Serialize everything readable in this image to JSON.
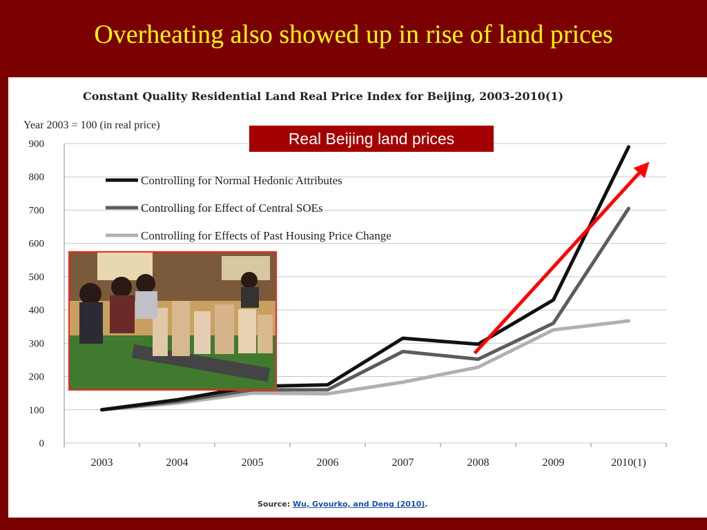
{
  "slide": {
    "title": "Overheating also showed up in rise of land prices",
    "callout": "Real Beijing land prices"
  },
  "source": {
    "label": "Source:",
    "link_text": "Wu, Gyourko, and Deng (2010)",
    "suffix": "."
  },
  "colors": {
    "background": "#7a0000",
    "title": "#ffff00",
    "callout": "#a40000",
    "arrow": "#ff0000",
    "photo_border": "#ff2020"
  },
  "photo": {
    "description_icon": "photo-housing-model-icon"
  },
  "chart_data": {
    "type": "line",
    "title": "Constant Quality Residential Land Real Price Index for Beijing, 2003-2010(1)",
    "ylabel": "Year 2003 = 100 (in real price)",
    "xlabel": "",
    "categories": [
      "2003",
      "2004",
      "2005",
      "2006",
      "2007",
      "2008",
      "2009",
      "2010(1)"
    ],
    "ylim": [
      0,
      900
    ],
    "yticks": [
      "0",
      "100",
      "200",
      "300",
      "400",
      "500",
      "600",
      "700",
      "800",
      "900"
    ],
    "grid": true,
    "legend_placement": "top-left",
    "series": [
      {
        "name": "Controlling for Normal Hedonic Attributes",
        "color": "#111111",
        "values": [
          100,
          130,
          170,
          175,
          315,
          297,
          430,
          890
        ]
      },
      {
        "name": "Controlling for Effect of Central SOEs",
        "color": "#5c5c5c",
        "values": [
          100,
          125,
          160,
          160,
          275,
          252,
          360,
          705
        ]
      },
      {
        "name": "Controlling for Effects of Past Housing Price Change",
        "color": "#b0b0b0",
        "values": [
          100,
          120,
          150,
          148,
          183,
          228,
          340,
          367
        ]
      }
    ],
    "annotation_arrow": {
      "from": [
        "2008",
        270
      ],
      "to": [
        "2010(1)",
        845
      ],
      "color": "#ff0000"
    }
  }
}
